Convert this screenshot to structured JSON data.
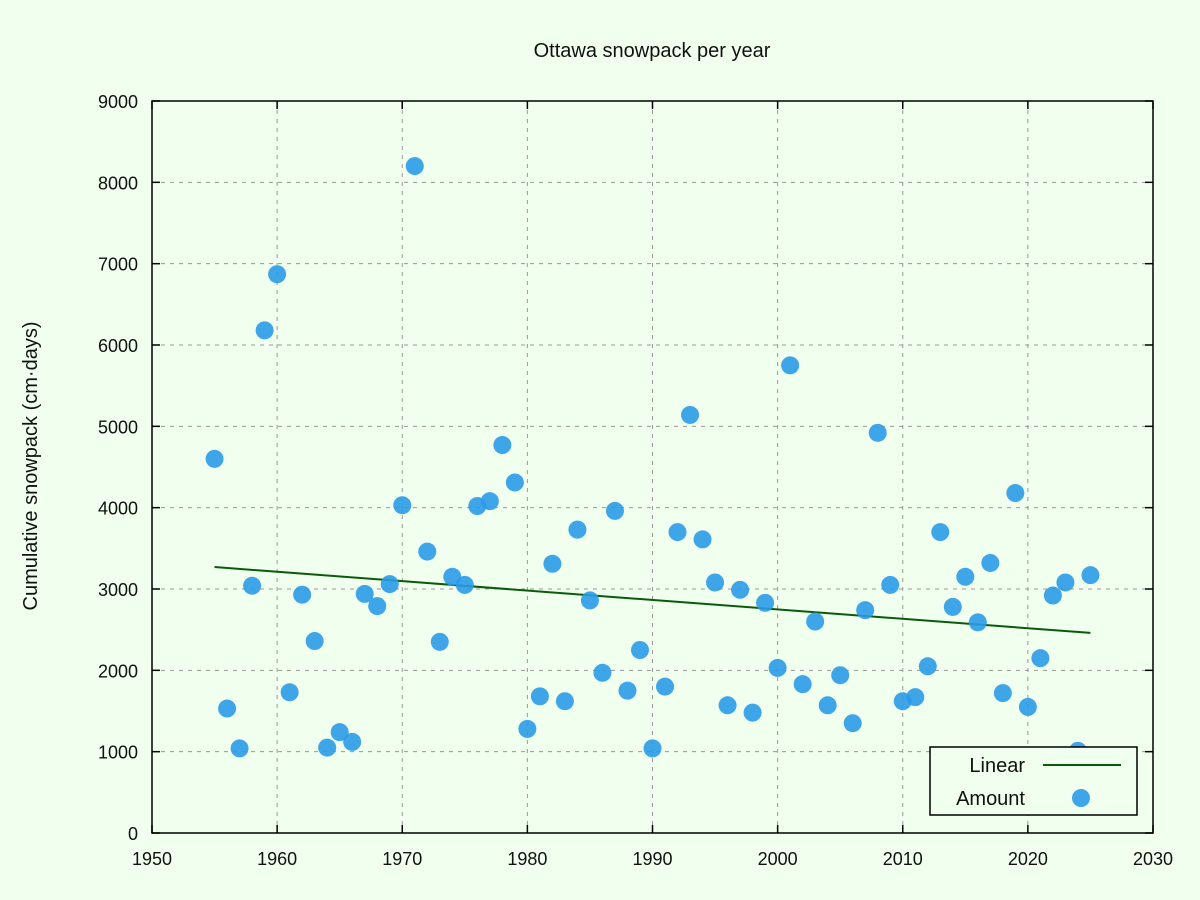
{
  "chart_data": {
    "type": "scatter",
    "title": "Ottawa snowpack per year",
    "xlabel": "",
    "ylabel": "Cumulative snowpack (cm·days)",
    "xlim": [
      1950,
      2030
    ],
    "ylim": [
      0,
      9000
    ],
    "xticks": [
      1950,
      1960,
      1970,
      1980,
      1990,
      2000,
      2010,
      2020,
      2030
    ],
    "yticks": [
      0,
      1000,
      2000,
      3000,
      4000,
      5000,
      6000,
      7000,
      8000,
      9000
    ],
    "grid": true,
    "legend_position": "bottom-right",
    "series": [
      {
        "name": "Linear",
        "kind": "line",
        "color": "#0b5a0b",
        "x": [
          1955,
          2025
        ],
        "y": [
          3270,
          2460
        ]
      },
      {
        "name": "Amount",
        "kind": "scatter",
        "color": "#2a9be8",
        "x": [
          1955,
          1956,
          1957,
          1958,
          1959,
          1960,
          1961,
          1962,
          1963,
          1964,
          1965,
          1966,
          1967,
          1968,
          1969,
          1970,
          1971,
          1972,
          1973,
          1974,
          1975,
          1976,
          1977,
          1978,
          1979,
          1980,
          1981,
          1982,
          1983,
          1984,
          1985,
          1986,
          1987,
          1988,
          1989,
          1990,
          1991,
          1992,
          1993,
          1994,
          1995,
          1996,
          1997,
          1998,
          1999,
          2000,
          2001,
          2002,
          2003,
          2004,
          2005,
          2006,
          2007,
          2008,
          2009,
          2010,
          2011,
          2012,
          2013,
          2014,
          2015,
          2016,
          2017,
          2018,
          2019,
          2020,
          2021,
          2022,
          2023,
          2024,
          2025
        ],
        "y": [
          4600,
          1530,
          1040,
          3040,
          6180,
          6870,
          1730,
          2930,
          2360,
          1050,
          1240,
          1120,
          2940,
          2790,
          3060,
          4030,
          8200,
          3460,
          2350,
          3150,
          3050,
          4020,
          4080,
          4770,
          4310,
          1280,
          1680,
          3310,
          1620,
          3730,
          2860,
          1970,
          3960,
          1750,
          2250,
          1040,
          1800,
          3700,
          5140,
          3610,
          3080,
          1570,
          2990,
          1480,
          2830,
          2030,
          5750,
          1830,
          2600,
          1570,
          1940,
          1350,
          2740,
          4920,
          3050,
          1620,
          1670,
          2050,
          3700,
          2780,
          3150,
          2590,
          3320,
          1720,
          4180,
          1550,
          2150,
          2920,
          3080,
          1010,
          3170
        ]
      }
    ]
  }
}
